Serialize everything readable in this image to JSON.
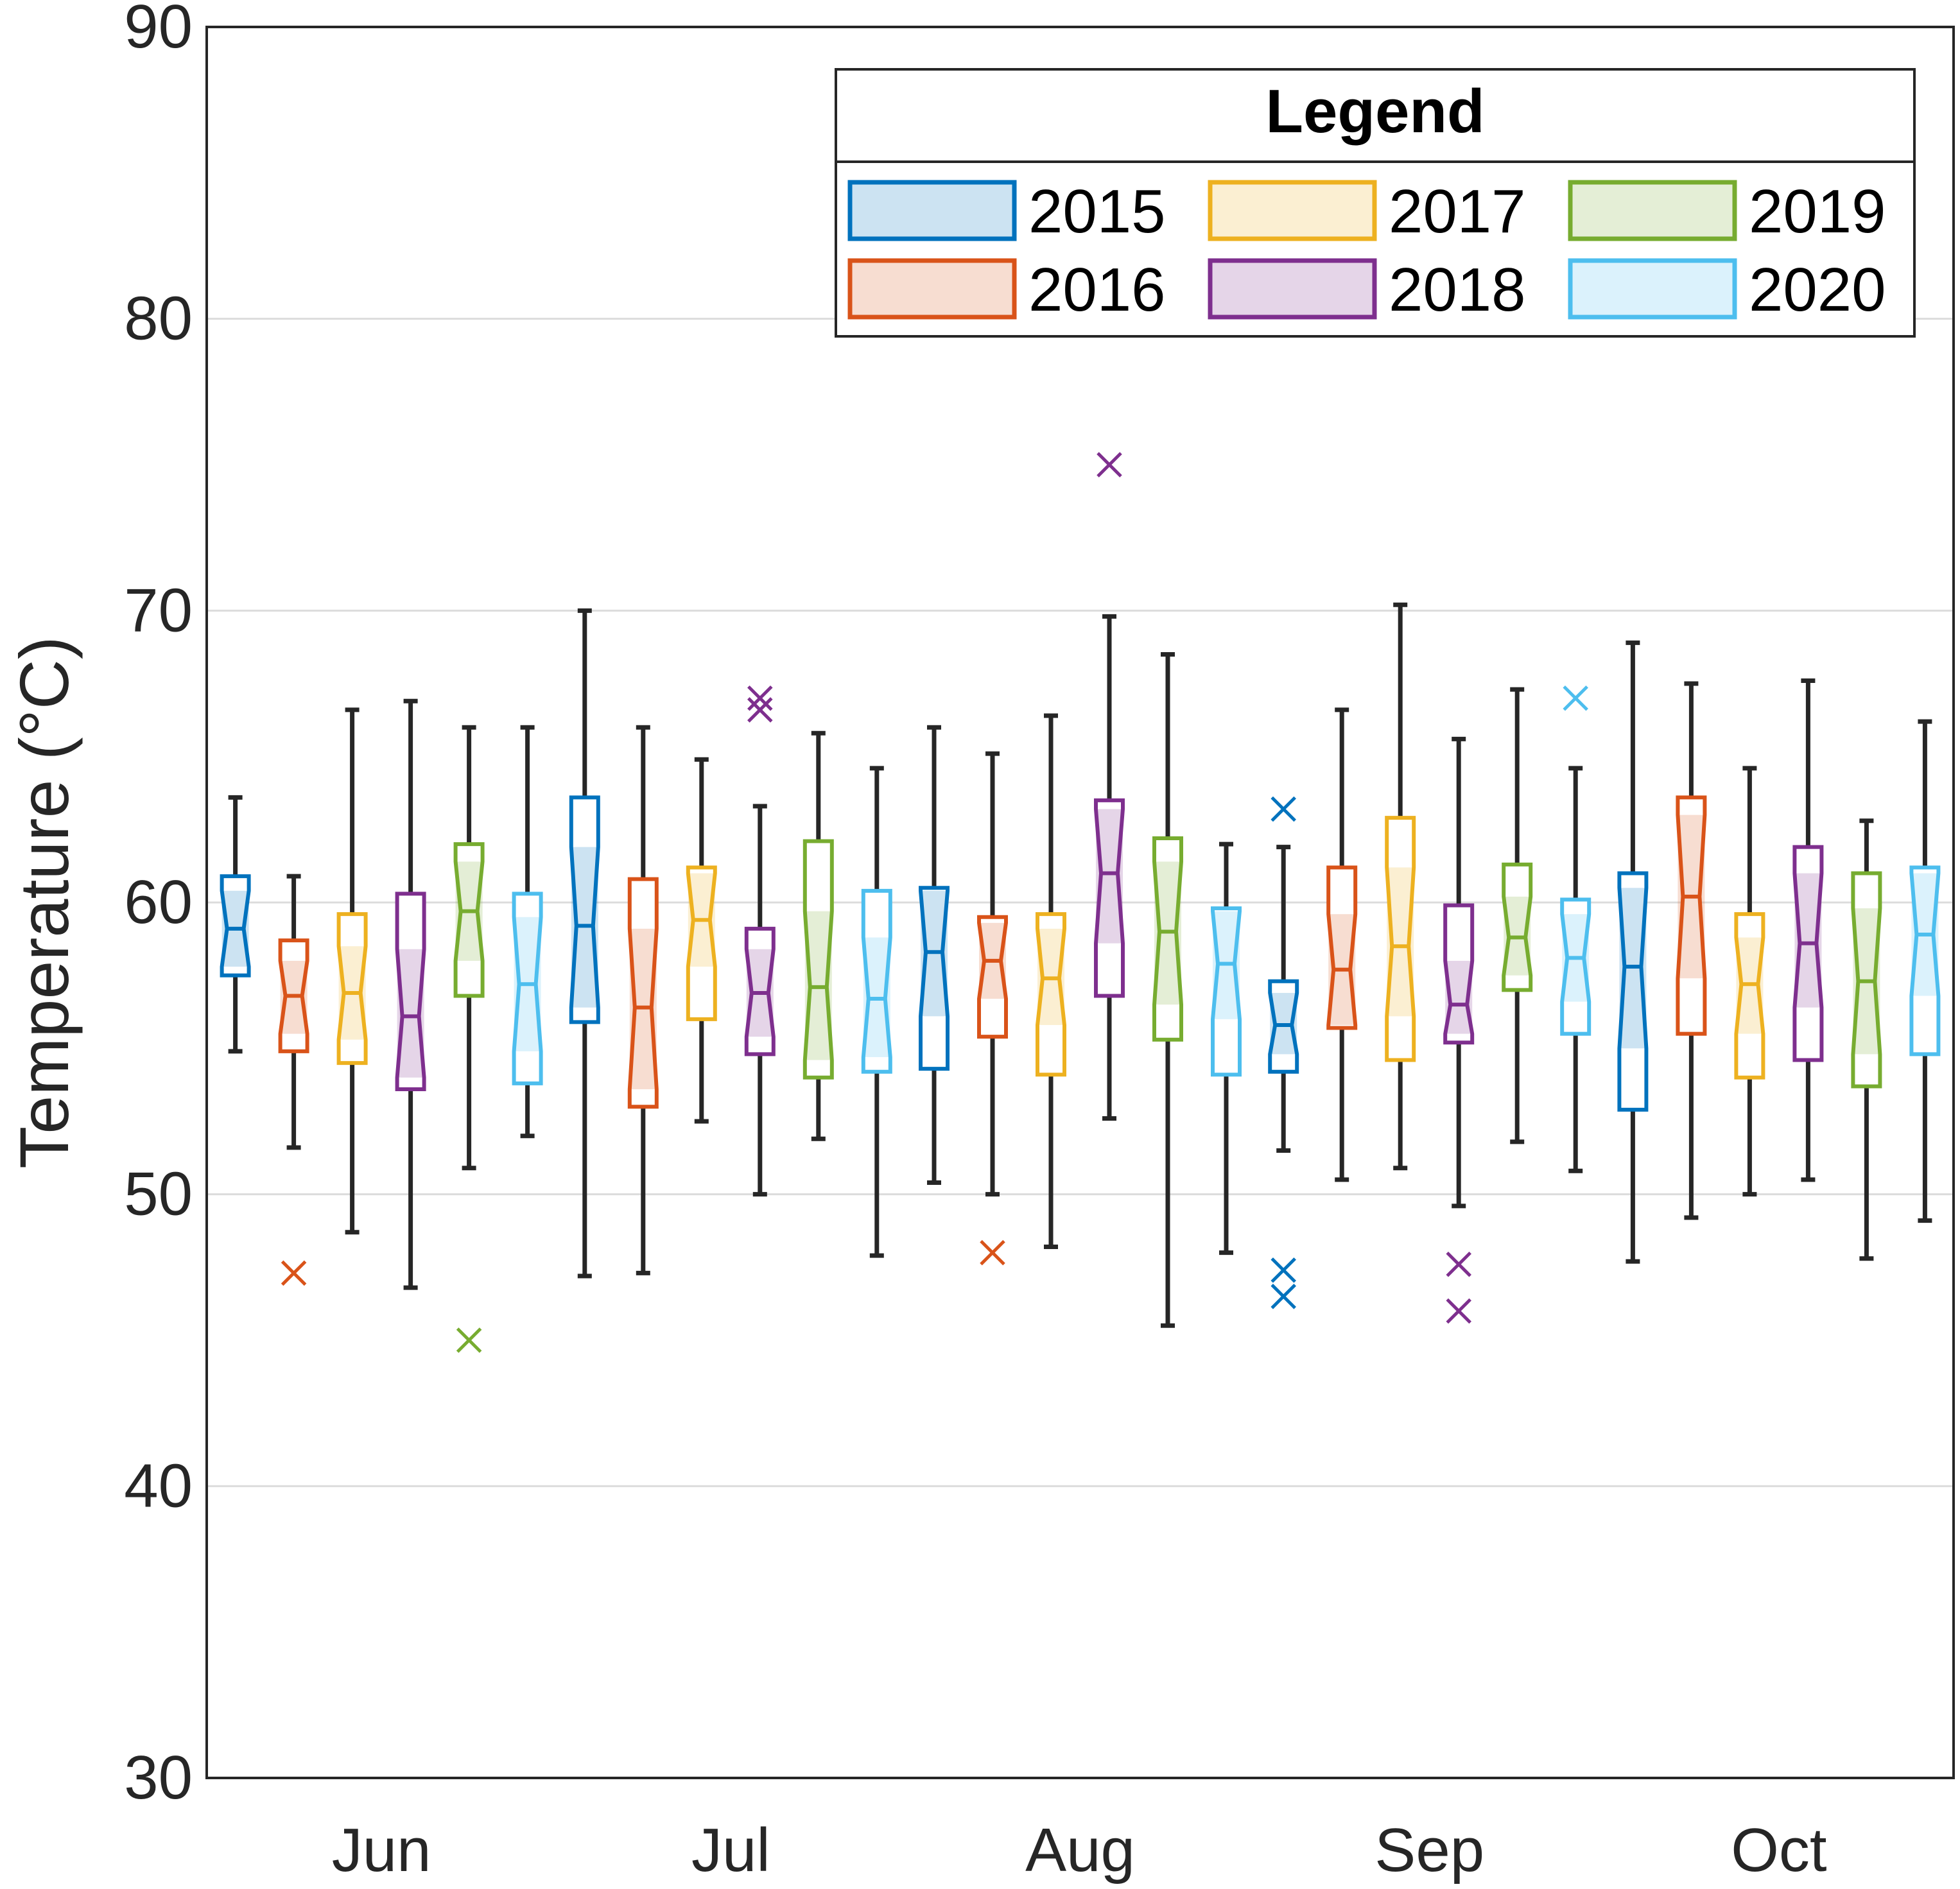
{
  "chart_data": {
    "type": "boxplot",
    "title": "",
    "xlabel": "",
    "ylabel": "Temperature (°C)",
    "ylim": [
      30,
      90
    ],
    "yticks": [
      30,
      40,
      50,
      60,
      70,
      80,
      90
    ],
    "grid": "horizontal",
    "notched": true,
    "categories": [
      "Jun",
      "Jul",
      "Aug",
      "Sep",
      "Oct"
    ],
    "legend": {
      "title": "Legend",
      "position": "top-right",
      "columns": 3
    },
    "series": [
      {
        "name": "2015",
        "color": "#0072BD",
        "boxes": [
          {
            "q1": 57.5,
            "median": 59.1,
            "q3": 60.9,
            "whislo": 54.9,
            "whishi": 63.6,
            "notch": [
              57.8,
              60.4
            ],
            "fliers": []
          },
          {
            "q1": 55.9,
            "median": 59.2,
            "q3": 63.6,
            "whislo": 47.2,
            "whishi": 70.0,
            "notch": [
              56.4,
              61.9
            ],
            "fliers": []
          },
          {
            "q1": 54.3,
            "median": 58.3,
            "q3": 60.5,
            "whislo": 50.4,
            "whishi": 66.0,
            "notch": [
              56.1,
              60.4
            ],
            "fliers": []
          },
          {
            "q1": 54.2,
            "median": 55.8,
            "q3": 57.3,
            "whislo": 51.5,
            "whishi": 61.9,
            "notch": [
              54.8,
              56.9
            ],
            "fliers": [
              63.2,
              47.4,
              46.5
            ]
          },
          {
            "q1": 52.9,
            "median": 57.8,
            "q3": 61.0,
            "whislo": 47.7,
            "whishi": 68.9,
            "notch": [
              55.0,
              60.5
            ],
            "fliers": []
          }
        ]
      },
      {
        "name": "2016",
        "color": "#D95319",
        "boxes": [
          {
            "q1": 54.9,
            "median": 56.8,
            "q3": 58.7,
            "whislo": 51.6,
            "whishi": 60.9,
            "notch": [
              55.5,
              58.0
            ],
            "fliers": [
              47.3
            ]
          },
          {
            "q1": 53.0,
            "median": 56.4,
            "q3": 60.8,
            "whislo": 47.3,
            "whishi": 66.0,
            "notch": [
              53.6,
              59.1
            ],
            "fliers": []
          },
          {
            "q1": 55.4,
            "median": 58.0,
            "q3": 59.5,
            "whislo": 50.0,
            "whishi": 65.1,
            "notch": [
              56.7,
              59.3
            ],
            "fliers": [
              48.0
            ]
          },
          {
            "q1": 55.7,
            "median": 57.7,
            "q3": 61.2,
            "whislo": 50.5,
            "whishi": 66.6,
            "notch": [
              55.8,
              59.6
            ],
            "fliers": []
          },
          {
            "q1": 55.5,
            "median": 60.2,
            "q3": 63.6,
            "whislo": 49.2,
            "whishi": 67.5,
            "notch": [
              57.4,
              63.0
            ],
            "fliers": []
          }
        ]
      },
      {
        "name": "2017",
        "color": "#EDB120",
        "boxes": [
          {
            "q1": 54.5,
            "median": 56.9,
            "q3": 59.6,
            "whislo": 48.7,
            "whishi": 66.6,
            "notch": [
              55.3,
              58.5
            ],
            "fliers": []
          },
          {
            "q1": 56.0,
            "median": 59.4,
            "q3": 61.2,
            "whislo": 52.5,
            "whishi": 64.9,
            "notch": [
              57.8,
              61.0
            ],
            "fliers": []
          },
          {
            "q1": 54.1,
            "median": 57.4,
            "q3": 59.6,
            "whislo": 48.2,
            "whishi": 66.4,
            "notch": [
              55.8,
              59.1
            ],
            "fliers": []
          },
          {
            "q1": 54.6,
            "median": 58.5,
            "q3": 62.9,
            "whislo": 50.9,
            "whishi": 70.2,
            "notch": [
              56.1,
              61.2
            ],
            "fliers": []
          },
          {
            "q1": 54.0,
            "median": 57.2,
            "q3": 59.6,
            "whislo": 50.0,
            "whishi": 64.6,
            "notch": [
              55.5,
              58.8
            ],
            "fliers": []
          }
        ]
      },
      {
        "name": "2018",
        "color": "#7E2F8E",
        "boxes": [
          {
            "q1": 53.6,
            "median": 56.1,
            "q3": 60.3,
            "whislo": 46.8,
            "whishi": 66.9,
            "notch": [
              54.0,
              58.4
            ],
            "fliers": []
          },
          {
            "q1": 54.8,
            "median": 56.9,
            "q3": 59.1,
            "whislo": 50.0,
            "whishi": 63.3,
            "notch": [
              55.4,
              58.4
            ],
            "fliers": [
              67.0,
              66.6
            ]
          },
          {
            "q1": 56.8,
            "median": 61.0,
            "q3": 63.5,
            "whislo": 52.6,
            "whishi": 69.8,
            "notch": [
              58.6,
              63.2
            ],
            "fliers": [
              75.0
            ]
          },
          {
            "q1": 55.2,
            "median": 56.5,
            "q3": 59.9,
            "whislo": 49.6,
            "whishi": 65.6,
            "notch": [
              55.5,
              58.0
            ],
            "fliers": [
              47.6,
              46.0
            ]
          },
          {
            "q1": 54.6,
            "median": 58.6,
            "q3": 61.9,
            "whislo": 50.5,
            "whishi": 67.6,
            "notch": [
              56.4,
              61.0
            ],
            "fliers": []
          }
        ]
      },
      {
        "name": "2019",
        "color": "#77AC30",
        "boxes": [
          {
            "q1": 56.8,
            "median": 59.7,
            "q3": 62.0,
            "whislo": 50.9,
            "whishi": 66.0,
            "notch": [
              58.0,
              61.4
            ],
            "fliers": [
              45.0
            ]
          },
          {
            "q1": 54.0,
            "median": 57.1,
            "q3": 62.1,
            "whislo": 51.9,
            "whishi": 65.8,
            "notch": [
              54.6,
              59.7
            ],
            "fliers": []
          },
          {
            "q1": 55.3,
            "median": 59.0,
            "q3": 62.2,
            "whislo": 45.5,
            "whishi": 68.5,
            "notch": [
              56.5,
              61.4
            ],
            "fliers": []
          },
          {
            "q1": 57.0,
            "median": 58.8,
            "q3": 61.3,
            "whislo": 51.8,
            "whishi": 67.3,
            "notch": [
              57.5,
              60.2
            ],
            "fliers": []
          },
          {
            "q1": 53.7,
            "median": 57.3,
            "q3": 61.0,
            "whislo": 47.8,
            "whishi": 62.8,
            "notch": [
              54.8,
              59.8
            ],
            "fliers": []
          }
        ]
      },
      {
        "name": "2020",
        "color": "#4DBEEE",
        "boxes": [
          {
            "q1": 53.8,
            "median": 57.2,
            "q3": 60.3,
            "whislo": 52.0,
            "whishi": 66.0,
            "notch": [
              54.9,
              59.5
            ],
            "fliers": []
          },
          {
            "q1": 54.2,
            "median": 56.7,
            "q3": 60.4,
            "whislo": 47.9,
            "whishi": 64.6,
            "notch": [
              54.7,
              58.8
            ],
            "fliers": []
          },
          {
            "q1": 54.1,
            "median": 57.9,
            "q3": 59.8,
            "whislo": 48.0,
            "whishi": 62.0,
            "notch": [
              56.0,
              59.7
            ],
            "fliers": []
          },
          {
            "q1": 55.5,
            "median": 58.1,
            "q3": 60.1,
            "whislo": 50.8,
            "whishi": 64.6,
            "notch": [
              56.6,
              59.6
            ],
            "fliers": [
              67.0
            ]
          },
          {
            "q1": 54.8,
            "median": 58.9,
            "q3": 61.2,
            "whislo": 49.1,
            "whishi": 66.2,
            "notch": [
              56.8,
              61.0
            ],
            "fliers": []
          }
        ]
      }
    ]
  }
}
